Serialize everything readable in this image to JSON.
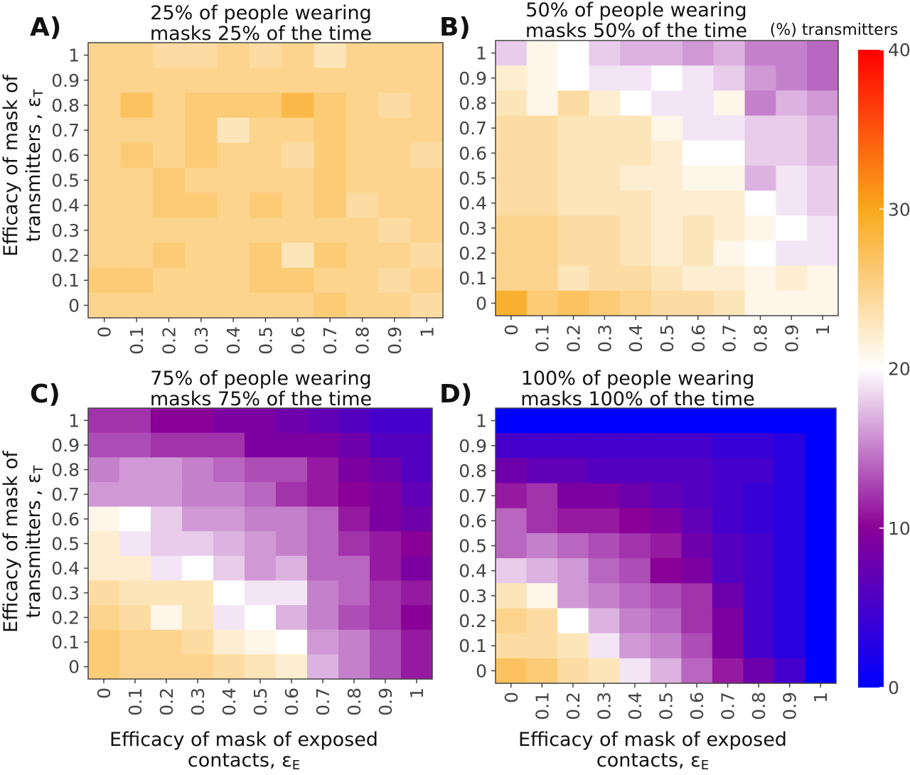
{
  "figure": {
    "y_axis_title": {
      "line1": "Efficacy of mask of",
      "line2": "transmitters",
      "symbol": "ε",
      "subscript": "T"
    },
    "x_axis_title": {
      "line1": "Efficacy of mask of exposed",
      "line2": "contacts",
      "symbol": "ε",
      "subscript": "E"
    }
  },
  "colorbar": {
    "title": "(%) transmitters",
    "ticks": [
      "40",
      "30",
      "20",
      "10",
      "0"
    ],
    "colors": {
      "low": "#0000ff",
      "low_mid": "#8a0096",
      "mid": "#ffffff",
      "high_mid": "#f9a81a",
      "high": "#ff0000"
    }
  },
  "chart_data": [
    {
      "type": "heatmap",
      "panel": "A)",
      "title_lines": [
        "25% of people wearing",
        "masks 25% of the time"
      ],
      "x_ticks": [
        "0",
        "0.1",
        "0.2",
        "0.3",
        "0.4",
        "0.5",
        "0.6",
        "0.7",
        "0.8",
        "0.9",
        "1"
      ],
      "y_ticks": [
        "0",
        "0.1",
        "0.2",
        "0.3",
        "0.4",
        "0.5",
        "0.6",
        "0.7",
        "0.8",
        "0.9",
        "1"
      ],
      "z_range": [
        0,
        40
      ],
      "z_rows_top_to_bottom": [
        [
          25,
          25,
          24,
          24,
          25,
          24,
          25,
          23,
          25,
          25,
          25
        ],
        [
          25,
          25,
          25,
          25,
          25,
          25,
          25,
          25,
          25,
          25,
          25
        ],
        [
          25,
          27,
          25,
          26,
          26,
          26,
          28,
          26,
          25,
          24,
          25
        ],
        [
          25,
          25,
          25,
          26,
          23,
          25,
          25,
          26,
          25,
          25,
          25
        ],
        [
          25,
          26,
          25,
          26,
          25,
          25,
          24,
          26,
          25,
          25,
          24
        ],
        [
          25,
          25,
          26,
          25,
          25,
          25,
          25,
          26,
          25,
          25,
          25
        ],
        [
          25,
          25,
          26,
          26,
          25,
          26,
          25,
          26,
          24,
          25,
          25
        ],
        [
          25,
          25,
          25,
          25,
          25,
          25,
          25,
          25,
          25,
          24,
          25
        ],
        [
          25,
          25,
          26,
          25,
          25,
          26,
          23,
          26,
          25,
          25,
          24
        ],
        [
          26,
          26,
          25,
          25,
          25,
          26,
          26,
          25,
          25,
          24,
          25
        ],
        [
          25,
          25,
          25,
          25,
          25,
          25,
          25,
          26,
          25,
          25,
          24
        ]
      ]
    },
    {
      "type": "heatmap",
      "panel": "B)",
      "title_lines": [
        "50% of people wearing",
        "masks 50% of the time"
      ],
      "x_ticks": [
        "0",
        "0.1",
        "0.2",
        "0.3",
        "0.4",
        "0.5",
        "0.6",
        "0.7",
        "0.8",
        "0.9",
        "1"
      ],
      "y_ticks": [
        "0",
        "0.1",
        "0.2",
        "0.3",
        "0.4",
        "0.5",
        "0.6",
        "0.7",
        "0.8",
        "0.9",
        "1"
      ],
      "z_range": [
        0,
        40
      ],
      "z_rows_top_to_bottom": [
        [
          18,
          21,
          20,
          18,
          17,
          17,
          16,
          17,
          15,
          15,
          14
        ],
        [
          22,
          21,
          20,
          19,
          19,
          20,
          19,
          18,
          16,
          15,
          14
        ],
        [
          23,
          21,
          24,
          22,
          20,
          19,
          19,
          21,
          15,
          17,
          16
        ],
        [
          24,
          24,
          23,
          23,
          23,
          21,
          19,
          19,
          18,
          18,
          17
        ],
        [
          24,
          24,
          23,
          23,
          23,
          22,
          20,
          20,
          18,
          18,
          17
        ],
        [
          24,
          24,
          23,
          23,
          22,
          22,
          21,
          21,
          17,
          19,
          18
        ],
        [
          24,
          24,
          23,
          23,
          23,
          22,
          22,
          22,
          20,
          19,
          18
        ],
        [
          25,
          25,
          24,
          24,
          23,
          22,
          23,
          22,
          21,
          20,
          19
        ],
        [
          25,
          25,
          24,
          24,
          23,
          22,
          23,
          21,
          20,
          19,
          19
        ],
        [
          25,
          25,
          23,
          24,
          24,
          23,
          22,
          22,
          21,
          22,
          21
        ],
        [
          29,
          26,
          27,
          26,
          25,
          24,
          24,
          23,
          21,
          21,
          21
        ]
      ]
    },
    {
      "type": "heatmap",
      "panel": "C)",
      "title_lines": [
        "75% of people wearing",
        "masks 75% of the time"
      ],
      "x_ticks": [
        "0",
        "0.1",
        "0.2",
        "0.3",
        "0.4",
        "0.5",
        "0.6",
        "0.7",
        "0.8",
        "0.9",
        "1"
      ],
      "y_ticks": [
        "0",
        "0.1",
        "0.2",
        "0.3",
        "0.4",
        "0.5",
        "0.6",
        "0.7",
        "0.8",
        "0.9",
        "1"
      ],
      "z_range": [
        0,
        40
      ],
      "z_rows_top_to_bottom": [
        [
          12,
          12,
          10,
          10,
          9,
          9,
          8,
          7,
          6,
          5,
          5
        ],
        [
          13,
          13,
          12,
          12,
          12,
          9,
          9,
          9,
          8,
          6,
          6
        ],
        [
          15,
          16,
          16,
          15,
          14,
          13,
          13,
          11,
          9,
          8,
          6
        ],
        [
          16,
          16,
          16,
          15,
          15,
          14,
          12,
          11,
          10,
          9,
          7
        ],
        [
          21,
          20,
          18,
          16,
          16,
          15,
          15,
          14,
          11,
          9,
          8
        ],
        [
          22,
          19,
          18,
          18,
          17,
          16,
          15,
          14,
          12,
          11,
          10
        ],
        [
          22,
          22,
          19,
          20,
          18,
          16,
          17,
          14,
          14,
          11,
          9
        ],
        [
          24,
          23,
          23,
          23,
          20,
          19,
          19,
          15,
          14,
          12,
          11
        ],
        [
          25,
          24,
          21,
          23,
          19,
          20,
          17,
          15,
          13,
          12,
          10
        ],
        [
          26,
          25,
          25,
          24,
          22,
          21,
          20,
          16,
          15,
          13,
          11
        ],
        [
          26,
          25,
          25,
          25,
          24,
          23,
          22,
          17,
          15,
          13,
          11
        ]
      ]
    },
    {
      "type": "heatmap",
      "panel": "D)",
      "title_lines": [
        "100% of people wearing",
        "masks 100% of the time"
      ],
      "x_ticks": [
        "0",
        "0.1",
        "0.2",
        "0.3",
        "0.4",
        "0.5",
        "0.6",
        "0.7",
        "0.8",
        "0.9",
        "1"
      ],
      "y_ticks": [
        "0",
        "0.1",
        "0.2",
        "0.3",
        "0.4",
        "0.5",
        "0.6",
        "0.7",
        "0.8",
        "0.9",
        "1"
      ],
      "z_range": [
        0,
        40
      ],
      "z_rows_top_to_bottom": [
        [
          0,
          0,
          0,
          0,
          0,
          0,
          0,
          0,
          0,
          0,
          0
        ],
        [
          5,
          5,
          5,
          5,
          5,
          5,
          5,
          4,
          4,
          3,
          0
        ],
        [
          8,
          7,
          7,
          6,
          6,
          6,
          6,
          5,
          5,
          3,
          0
        ],
        [
          11,
          12,
          9,
          9,
          8,
          7,
          6,
          5,
          4,
          3,
          0
        ],
        [
          14,
          12,
          11,
          11,
          10,
          9,
          7,
          5,
          4,
          3,
          0
        ],
        [
          14,
          15,
          14,
          13,
          12,
          11,
          8,
          6,
          5,
          3,
          0
        ],
        [
          18,
          17,
          16,
          14,
          13,
          10,
          9,
          6,
          5,
          3,
          0
        ],
        [
          23,
          21,
          16,
          15,
          14,
          13,
          12,
          8,
          5,
          3,
          0
        ],
        [
          25,
          24,
          20,
          17,
          15,
          14,
          12,
          9,
          5,
          3,
          0
        ],
        [
          24,
          24,
          23,
          19,
          16,
          15,
          13,
          9,
          5,
          3,
          0
        ],
        [
          27,
          26,
          24,
          23,
          19,
          17,
          14,
          11,
          8,
          5,
          0
        ]
      ]
    }
  ]
}
